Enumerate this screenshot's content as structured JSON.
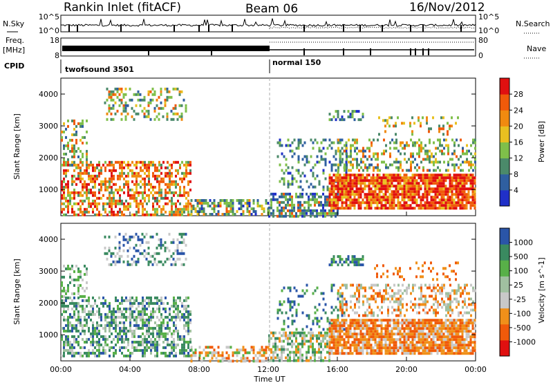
{
  "header": {
    "station": "Rankin Inlet (fitACF)",
    "beam": "Beam 06",
    "date": "16/Nov/2012"
  },
  "sky_panel": {
    "left_label": "N.Sky",
    "right_label": "N.Search",
    "y_ticks_left": [
      "10^5",
      "10^0"
    ],
    "y_ticks_right": [
      "10^5",
      "10^0"
    ]
  },
  "freq_panel": {
    "left_label_1": "Freq.",
    "left_label_2": "[MHz]",
    "right_label": "Nave",
    "y_ticks_left": [
      "18",
      "8"
    ],
    "y_ticks_right": [
      "80",
      "0"
    ]
  },
  "cpid": {
    "label": "CPID",
    "mode_1": "twofsound 3501",
    "mode_2": "normal 150"
  },
  "x_axis": {
    "label": "Time UT",
    "ticks": [
      "00:00",
      "04:00",
      "08:00",
      "12:00",
      "16:00",
      "20:00",
      "00:00"
    ]
  },
  "colors": {
    "power_scale": [
      "#2030c8",
      "#2f5fa0",
      "#4b8a6a",
      "#7fbf4a",
      "#e8c020",
      "#f08a10",
      "#f05a0a",
      "#e01010"
    ],
    "velocity_scale": [
      "#e01010",
      "#f05a0a",
      "#f0901a",
      "#c8c8c8",
      "#a0c0a0",
      "#58b048",
      "#3a8a60",
      "#2a55a8"
    ]
  },
  "chart_data": [
    {
      "type": "heatmap",
      "panel": "power",
      "ylabel": "Slant Range [km]",
      "xlabel": "Time UT",
      "x_range_hours": [
        0,
        24
      ],
      "ylim_km": [
        180,
        4500
      ],
      "y_ticks": [
        "1000",
        "2000",
        "3000",
        "4000"
      ],
      "colorbar_label": "Power [dB]",
      "colorbar_ticks": [
        "4",
        "8",
        "12",
        "16",
        "20",
        "24",
        "28"
      ],
      "colorbar_range": [
        0,
        30
      ]
    },
    {
      "type": "heatmap",
      "panel": "velocity",
      "ylabel": "Slant Range [km]",
      "xlabel": "Time UT",
      "x_range_hours": [
        0,
        24
      ],
      "ylim_km": [
        180,
        4500
      ],
      "y_ticks": [
        "1000",
        "2000",
        "3000",
        "4000"
      ],
      "colorbar_label": "Velocity [m s^-1]",
      "colorbar_ticks": [
        "1000",
        "500",
        "100",
        "25",
        "-25",
        "-100",
        "-500",
        "-1000"
      ]
    }
  ]
}
